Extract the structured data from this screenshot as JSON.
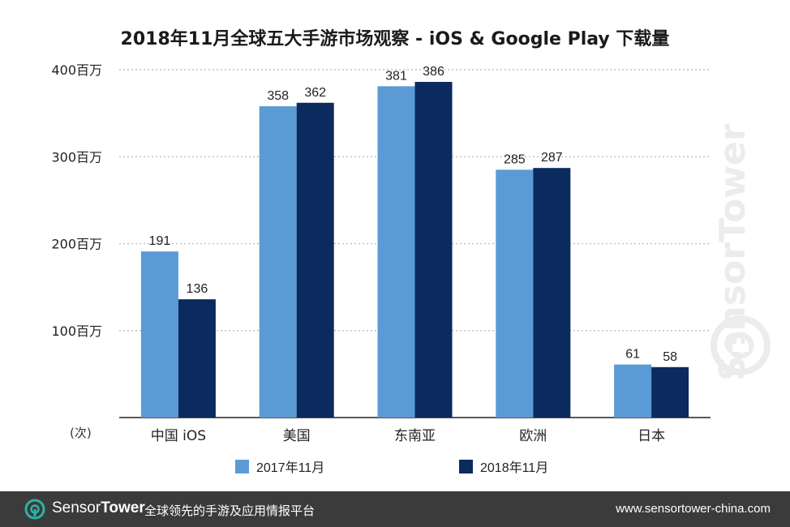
{
  "chart_data": {
    "type": "bar",
    "title": "2018年11月全球五大手游市场观察 - iOS & Google Play 下载量",
    "categories": [
      "中国 iOS",
      "美国",
      "东南亚",
      "欧洲",
      "日本"
    ],
    "series": [
      {
        "name": "2017年11月",
        "values": [
          191,
          358,
          381,
          285,
          61
        ],
        "color": "#5b9bd5"
      },
      {
        "name": "2018年11月",
        "values": [
          136,
          362,
          386,
          287,
          58
        ],
        "color": "#0b2a5e"
      }
    ],
    "yticks": [
      100,
      200,
      300,
      400
    ],
    "ytick_labels": [
      "100百万",
      "200百万",
      "300百万",
      "400百万"
    ],
    "ylim": [
      0,
      400
    ],
    "ylabel_unit": "(次)",
    "grid": true,
    "legend_position": "bottom-center"
  },
  "watermark": {
    "text": "SensorTower"
  },
  "footer": {
    "brand_sensor": "Sensor",
    "brand_tower": "Tower",
    "tagline": "全球领先的手游及应用情报平台",
    "url": "www.sensortower-china.com"
  },
  "colors": {
    "footer_bg": "#3b3b3b",
    "logo_accent": "#2bb3a3"
  }
}
